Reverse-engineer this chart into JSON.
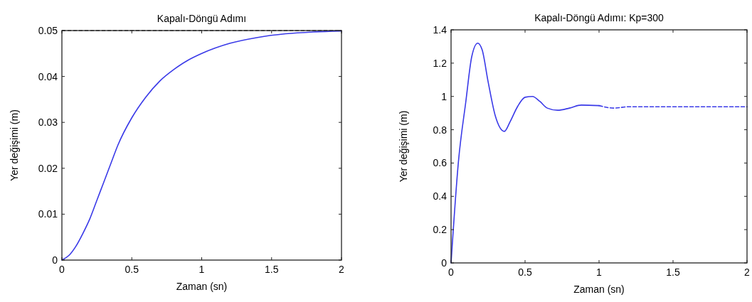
{
  "chart_data": [
    {
      "type": "line",
      "title": "Kapalı-Döngü Adımı",
      "xlabel": "Zaman (sn)",
      "ylabel": "Yer değişimi (m)",
      "x": [
        0,
        0.05,
        0.1,
        0.15,
        0.2,
        0.25,
        0.3,
        0.35,
        0.4,
        0.5,
        0.6,
        0.7,
        0.8,
        0.9,
        1.0,
        1.2,
        1.4,
        1.6,
        1.8,
        2.0
      ],
      "series": [
        {
          "color": "#3a3ae8",
          "values": [
            0,
            0.001,
            0.003,
            0.0058,
            0.009,
            0.013,
            0.017,
            0.021,
            0.025,
            0.031,
            0.0355,
            0.039,
            0.0415,
            0.0435,
            0.045,
            0.0472,
            0.0485,
            0.0493,
            0.0497,
            0.0499
          ]
        }
      ],
      "xlim": [
        0,
        2
      ],
      "ylim": [
        0,
        0.05
      ],
      "xticks": [
        0,
        0.5,
        1,
        1.5,
        2
      ],
      "yticks": [
        0,
        0.01,
        0.02,
        0.03,
        0.04,
        0.05
      ],
      "ref_lines": [
        {
          "axis": "y",
          "value": 0.05,
          "color": "#000000",
          "line_style": "dashed"
        }
      ],
      "grid": false,
      "marker": "none"
    },
    {
      "type": "line",
      "title": "Kapalı-Döngü Adımı: Kp=300",
      "xlabel": "Zaman (sn)",
      "ylabel": "Yer değişimi (m)",
      "series": [
        {
          "color": "#3a3ae8",
          "line_style": "solid",
          "x": [
            0,
            0.05,
            0.1,
            0.14,
            0.18,
            0.21,
            0.25,
            0.3,
            0.36,
            0.4,
            0.45,
            0.5,
            0.55,
            0.6,
            0.65,
            0.72,
            0.8,
            0.88,
            1.0
          ],
          "values": [
            0,
            0.61,
            0.97,
            1.24,
            1.32,
            1.28,
            1.09,
            0.88,
            0.79,
            0.85,
            0.94,
            0.995,
            1.0,
            0.97,
            0.93,
            0.917,
            0.93,
            0.948,
            0.945
          ]
        },
        {
          "color": "#3a3ae8",
          "line_style": "dashed",
          "x": [
            1.0,
            1.1,
            1.2,
            2.0
          ],
          "values": [
            0.945,
            0.93,
            0.938,
            0.938
          ]
        }
      ],
      "xlim": [
        0,
        2
      ],
      "ylim": [
        0,
        1.4
      ],
      "xticks": [
        0,
        0.5,
        1,
        1.5,
        2
      ],
      "yticks": [
        0,
        0.2,
        0.4,
        0.6,
        0.8,
        1,
        1.2,
        1.4
      ],
      "grid": false,
      "marker": "none"
    }
  ]
}
